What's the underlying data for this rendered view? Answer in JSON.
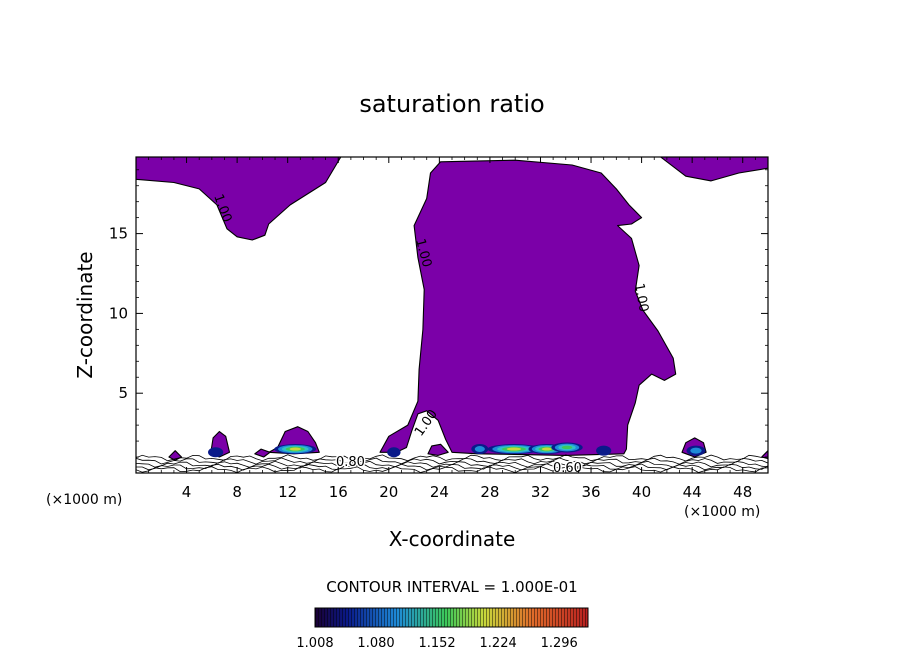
{
  "chart_data": {
    "type": "contour",
    "title": "saturation ratio",
    "xlabel": "X-coordinate",
    "ylabel": "Z-coordinate",
    "x_unit": "(×1000 m)",
    "y_unit": "(×1000 m)",
    "xlim": [
      0,
      50
    ],
    "ylim": [
      0,
      19.8
    ],
    "x_ticks": [
      4,
      8,
      12,
      16,
      20,
      24,
      28,
      32,
      36,
      40,
      44,
      48
    ],
    "y_ticks": [
      5,
      10,
      15
    ],
    "contour_interval_label": "CONTOUR INTERVAL = 1.000E-01",
    "contour_labels": [
      "1.00",
      "1.00",
      "1.00",
      "1.00",
      "0.80",
      "0.60"
    ],
    "colorbar": {
      "range": [
        1.008,
        1.33
      ],
      "tick_labels": [
        "1.008",
        "1.080",
        "1.152",
        "1.224",
        "1.296"
      ]
    },
    "colors": {
      "fill": "#7b00a8",
      "background": "#ffffff",
      "line": "#000000"
    },
    "regions": {
      "top_left_lobe": [
        [
          0,
          19.8
        ],
        [
          16.2,
          19.8
        ],
        [
          15,
          18.2
        ],
        [
          12.2,
          16.8
        ],
        [
          10.5,
          15.6
        ],
        [
          10.2,
          14.9
        ],
        [
          9.2,
          14.6
        ],
        [
          8,
          14.8
        ],
        [
          7.2,
          15.3
        ],
        [
          6.4,
          16.8
        ],
        [
          5,
          17.8
        ],
        [
          3,
          18.2
        ],
        [
          0,
          18.4
        ]
      ],
      "top_right_lobe": [
        [
          41.5,
          19.8
        ],
        [
          50,
          19.8
        ],
        [
          50,
          19.1
        ],
        [
          47.7,
          18.8
        ],
        [
          45.5,
          18.3
        ],
        [
          43.5,
          18.6
        ]
      ],
      "main_cloud": [
        [
          19.3,
          1.3
        ],
        [
          20,
          2.3
        ],
        [
          21.5,
          3
        ],
        [
          22.3,
          4.5
        ],
        [
          22.4,
          6.5
        ],
        [
          22.7,
          9
        ],
        [
          22.8,
          11.5
        ],
        [
          22.3,
          13.5
        ],
        [
          22,
          15.5
        ],
        [
          23,
          17.2
        ],
        [
          23.3,
          18.8
        ],
        [
          24.1,
          19.5
        ],
        [
          30,
          19.6
        ],
        [
          34.5,
          19.3
        ],
        [
          36.8,
          18.8
        ],
        [
          38,
          17.8
        ],
        [
          39,
          16.8
        ],
        [
          40,
          16
        ],
        [
          39.2,
          15.6
        ],
        [
          38.1,
          15.5
        ],
        [
          39.2,
          14.7
        ],
        [
          39.8,
          13
        ],
        [
          39.5,
          11.4
        ],
        [
          40.1,
          10.2
        ],
        [
          41.3,
          8.9
        ],
        [
          42.5,
          7.2
        ],
        [
          42.7,
          6.2
        ],
        [
          41.8,
          5.8
        ],
        [
          40.8,
          6.2
        ],
        [
          39.8,
          5.5
        ],
        [
          39.5,
          4.4
        ],
        [
          38.9,
          3
        ],
        [
          38.8,
          1.5
        ],
        [
          38.6,
          1.2
        ],
        [
          34,
          1.1
        ],
        [
          27,
          1.2
        ],
        [
          25,
          1.3
        ],
        [
          24.5,
          2.1
        ],
        [
          23.9,
          3.3
        ],
        [
          23,
          3.9
        ],
        [
          22.3,
          3.7
        ],
        [
          21.8,
          2.6
        ],
        [
          21.4,
          1.6
        ],
        [
          20.6,
          1.3
        ]
      ],
      "blob_13": [
        [
          10.5,
          1.3
        ],
        [
          11.2,
          1.6
        ],
        [
          11.8,
          2.6
        ],
        [
          12.8,
          2.9
        ],
        [
          13.6,
          2.6
        ],
        [
          14.2,
          1.9
        ],
        [
          14.5,
          1.3
        ],
        [
          12.5,
          1.2
        ]
      ],
      "blob_6": [
        [
          5.9,
          1.2
        ],
        [
          6.1,
          2.2
        ],
        [
          6.6,
          2.6
        ],
        [
          7.1,
          2.3
        ],
        [
          7.4,
          1.3
        ],
        [
          6.6,
          1.0
        ]
      ],
      "blob_44": [
        [
          43.2,
          1.3
        ],
        [
          43.5,
          1.9
        ],
        [
          44.2,
          2.2
        ],
        [
          44.9,
          1.9
        ],
        [
          45.1,
          1.3
        ],
        [
          44.2,
          1.0
        ]
      ],
      "blob_24": [
        [
          23.1,
          1.2
        ],
        [
          23.4,
          1.7
        ],
        [
          24.1,
          1.8
        ],
        [
          24.7,
          1.3
        ],
        [
          23.9,
          1.1
        ]
      ],
      "blob_3": [
        [
          2.6,
          1.0
        ],
        [
          3.1,
          1.4
        ],
        [
          3.6,
          1.0
        ],
        [
          3.1,
          0.8
        ]
      ],
      "blob_9": [
        [
          9.4,
          1.2
        ],
        [
          9.9,
          1.5
        ],
        [
          10.6,
          1.3
        ],
        [
          10.1,
          1.0
        ]
      ],
      "blob_50": [
        [
          49.5,
          1.0
        ],
        [
          50,
          1.4
        ],
        [
          50,
          0.9
        ]
      ]
    },
    "supersaturated_spots": [
      {
        "x": 12.6,
        "z": 1.5,
        "peak": 1.19
      },
      {
        "x": 29.9,
        "z": 1.5,
        "peak": 1.25
      },
      {
        "x": 32.5,
        "z": 1.5,
        "peak": 1.16
      },
      {
        "x": 34.1,
        "z": 1.6,
        "peak": 1.13
      },
      {
        "x": 27.2,
        "z": 1.5,
        "peak": 1.05
      },
      {
        "x": 37.0,
        "z": 1.4,
        "peak": 1.04
      },
      {
        "x": 44.3,
        "z": 1.4,
        "peak": 1.06
      },
      {
        "x": 6.3,
        "z": 1.3,
        "peak": 1.04
      },
      {
        "x": 20.4,
        "z": 1.3,
        "peak": 1.03
      }
    ]
  }
}
